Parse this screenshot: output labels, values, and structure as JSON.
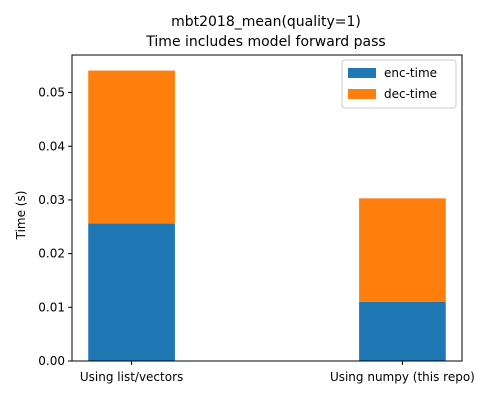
{
  "chart_data": {
    "type": "bar",
    "stacked": true,
    "title": "mbt2018_mean(quality=1)",
    "subtitle": "Time includes model forward pass",
    "xlabel": "",
    "ylabel": "Time (s)",
    "categories": [
      "Using list/vectors",
      "Using numpy (this repo)"
    ],
    "series": [
      {
        "name": "enc-time",
        "values": [
          0.0256,
          0.011
        ],
        "color": "#1f77b4"
      },
      {
        "name": "dec-time",
        "values": [
          0.0285,
          0.0193
        ],
        "color": "#ff7f0e"
      }
    ],
    "ylim": [
      0,
      0.057
    ],
    "yticks": [
      0.0,
      0.01,
      0.02,
      0.03,
      0.04,
      0.05
    ],
    "ytick_labels": [
      "0.00",
      "0.01",
      "0.02",
      "0.03",
      "0.04",
      "0.05"
    ],
    "grid": false,
    "legend": "top-right"
  }
}
